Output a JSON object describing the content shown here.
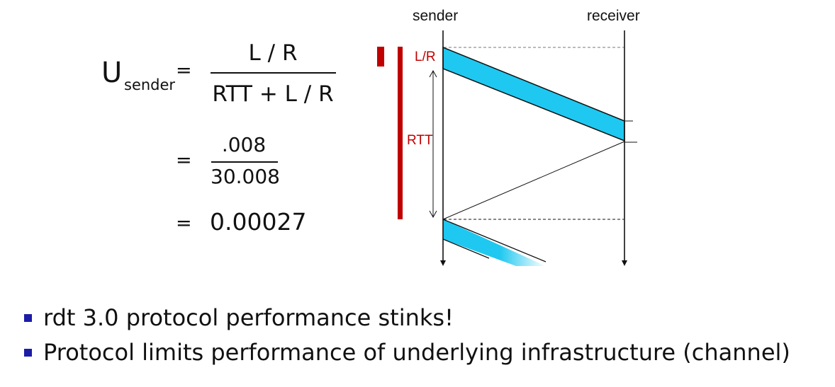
{
  "formula": {
    "lhs_main": "U",
    "lhs_sub": "sender",
    "eq": "=",
    "line1": {
      "numerator": "L / R",
      "denominator": "RTT + L / R"
    },
    "line2": {
      "eq": "=",
      "numerator": ".008",
      "denominator": "30.008"
    },
    "line3": {
      "eq": "=",
      "result": "0.00027"
    }
  },
  "diagram": {
    "sender_label": "sender",
    "receiver_label": "receiver",
    "lr_label": "L/R",
    "rtt_label": "RTT",
    "colors": {
      "packet": "#1fc8f0",
      "highlight": "#c00000",
      "line": "#111111"
    }
  },
  "bullets": [
    "rdt 3.0 protocol performance stinks!",
    "Protocol limits performance of underlying infrastructure (channel)"
  ],
  "bullet_color": "#1c1ca8"
}
